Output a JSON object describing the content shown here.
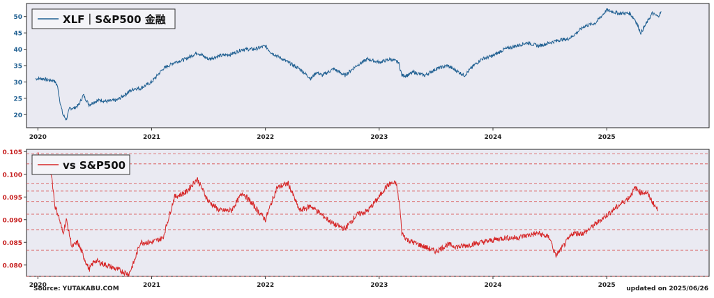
{
  "chart_data": [
    {
      "type": "line",
      "legend": "XLF｜S&P500 金融",
      "legend_position": "top-left",
      "color": "#1f5f91",
      "tick_color": "#1f5f91",
      "ylim": [
        16,
        54
      ],
      "yticks": [
        20,
        25,
        30,
        35,
        40,
        45,
        50
      ],
      "xticks": [
        "2020",
        "2021",
        "2022",
        "2023",
        "2024",
        "2025"
      ],
      "grid": false,
      "x": [
        2019.98,
        2020.05,
        2020.1,
        2020.14,
        2020.17,
        2020.2,
        2020.22,
        2020.25,
        2020.28,
        2020.32,
        2020.36,
        2020.4,
        2020.45,
        2020.5,
        2020.55,
        2020.6,
        2020.7,
        2020.8,
        2020.85,
        2020.9,
        2021.0,
        2021.1,
        2021.2,
        2021.3,
        2021.4,
        2021.5,
        2021.6,
        2021.7,
        2021.8,
        2021.9,
        2022.0,
        2022.05,
        2022.1,
        2022.2,
        2022.3,
        2022.4,
        2022.45,
        2022.5,
        2022.6,
        2022.7,
        2022.8,
        2022.9,
        2023.0,
        2023.1,
        2023.17,
        2023.2,
        2023.25,
        2023.3,
        2023.4,
        2023.5,
        2023.6,
        2023.7,
        2023.75,
        2023.83,
        2023.9,
        2024.0,
        2024.1,
        2024.2,
        2024.3,
        2024.4,
        2024.5,
        2024.6,
        2024.65,
        2024.7,
        2024.8,
        2024.9,
        2025.0,
        2025.1,
        2025.2,
        2025.25,
        2025.3,
        2025.35,
        2025.4,
        2025.45,
        2025.48
      ],
      "y": [
        31,
        31,
        30.5,
        30.5,
        29,
        23,
        20,
        18.5,
        22,
        22,
        23,
        26,
        23,
        24,
        24.5,
        24,
        24.5,
        27,
        28,
        28,
        30,
        34,
        36,
        37,
        39,
        37,
        38,
        38.5,
        40,
        40,
        41,
        39,
        38,
        36,
        34,
        31,
        33,
        32,
        34,
        32,
        35,
        37,
        36,
        37,
        36,
        32,
        32,
        33,
        32,
        34,
        35,
        33,
        32,
        35,
        37,
        38,
        40,
        41,
        42,
        41,
        42,
        43,
        43,
        44,
        47,
        48,
        52,
        51,
        51,
        49,
        45,
        48,
        51,
        50,
        51.5
      ]
    },
    {
      "type": "line",
      "legend": "vs S&P500",
      "legend_position": "top-left",
      "color": "#d62728",
      "tick_color": "#c62020",
      "ylim": [
        0.0775,
        0.1055
      ],
      "yticks": [
        0.08,
        0.085,
        0.09,
        0.095,
        0.1,
        0.105
      ],
      "xticks": [
        "2020",
        "2021",
        "2022",
        "2023",
        "2024",
        "2025"
      ],
      "grid": true,
      "hlines": [
        0.0775,
        0.0833,
        0.0878,
        0.0912,
        0.094,
        0.0963,
        0.098,
        0.1023,
        0.1045
      ],
      "x": [
        2020.0,
        2020.05,
        2020.12,
        2020.15,
        2020.18,
        2020.22,
        2020.25,
        2020.3,
        2020.35,
        2020.4,
        2020.45,
        2020.5,
        2020.6,
        2020.7,
        2020.8,
        2020.85,
        2020.9,
        2021.0,
        2021.1,
        2021.2,
        2021.3,
        2021.4,
        2021.5,
        2021.6,
        2021.7,
        2021.8,
        2021.9,
        2022.0,
        2022.1,
        2022.2,
        2022.3,
        2022.4,
        2022.5,
        2022.6,
        2022.7,
        2022.8,
        2022.9,
        2023.0,
        2023.05,
        2023.1,
        2023.15,
        2023.18,
        2023.2,
        2023.25,
        2023.3,
        2023.4,
        2023.5,
        2023.6,
        2023.7,
        2023.8,
        2023.9,
        2024.0,
        2024.1,
        2024.2,
        2024.3,
        2024.4,
        2024.5,
        2024.55,
        2024.6,
        2024.7,
        2024.8,
        2024.9,
        2025.0,
        2025.1,
        2025.2,
        2025.25,
        2025.3,
        2025.35,
        2025.4,
        2025.45
      ],
      "y": [
        0.1045,
        0.1025,
        0.1,
        0.093,
        0.091,
        0.087,
        0.09,
        0.084,
        0.085,
        0.082,
        0.079,
        0.081,
        0.08,
        0.079,
        0.078,
        0.081,
        0.085,
        0.085,
        0.086,
        0.095,
        0.096,
        0.099,
        0.094,
        0.092,
        0.092,
        0.096,
        0.093,
        0.09,
        0.097,
        0.098,
        0.092,
        0.093,
        0.091,
        0.089,
        0.088,
        0.091,
        0.092,
        0.095,
        0.097,
        0.098,
        0.098,
        0.093,
        0.087,
        0.0855,
        0.085,
        0.084,
        0.083,
        0.0845,
        0.084,
        0.0845,
        0.085,
        0.0855,
        0.086,
        0.086,
        0.0865,
        0.087,
        0.086,
        0.082,
        0.0835,
        0.087,
        0.087,
        0.089,
        0.091,
        0.093,
        0.095,
        0.097,
        0.096,
        0.096,
        0.094,
        0.092
      ]
    }
  ],
  "footer": {
    "source": "Source: YUTAKABU.COM",
    "updated": "updated on 2025/06/26"
  }
}
